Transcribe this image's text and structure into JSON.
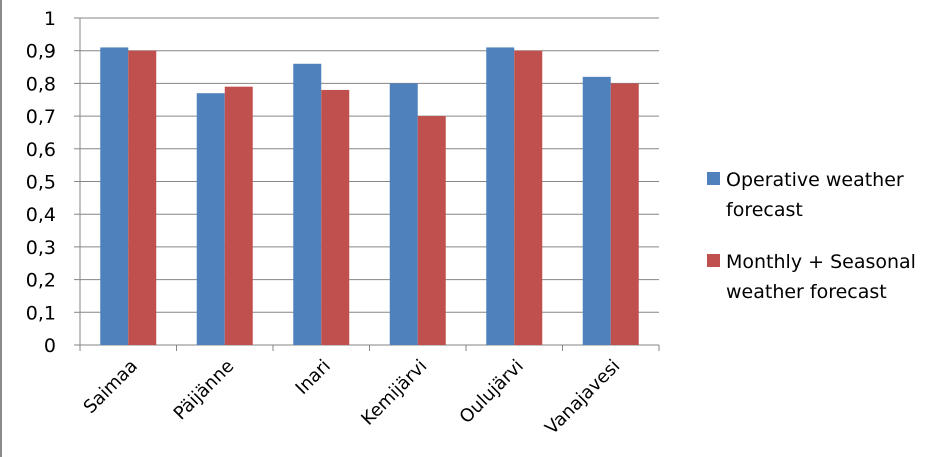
{
  "chart_data": {
    "type": "bar",
    "categories": [
      "Saimaa",
      "Päijänne",
      "Inari",
      "Kemijärvi",
      "Oulujärvi",
      "Vanajavesi"
    ],
    "series": [
      {
        "name": "Operative weather forecast",
        "values": [
          0.91,
          0.77,
          0.86,
          0.8,
          0.91,
          0.82
        ],
        "color": "#4f81bd"
      },
      {
        "name": "Monthly + Seasonal weather forecast",
        "values": [
          0.9,
          0.79,
          0.78,
          0.7,
          0.9,
          0.8
        ],
        "color": "#c0504d"
      }
    ],
    "y_ticks": [
      "0",
      "0,1",
      "0,2",
      "0,3",
      "0,4",
      "0,5",
      "0,6",
      "0,7",
      "0,8",
      "0,9",
      "1"
    ],
    "ylim": [
      0,
      1
    ],
    "grid": true,
    "legend_position": "right",
    "title": "",
    "xlabel": "",
    "ylabel": ""
  },
  "legend": {
    "items": [
      {
        "lines": [
          "Operative weather",
          "forecast"
        ]
      },
      {
        "lines": [
          "Monthly + Seasonal",
          "weather forecast"
        ]
      }
    ]
  }
}
